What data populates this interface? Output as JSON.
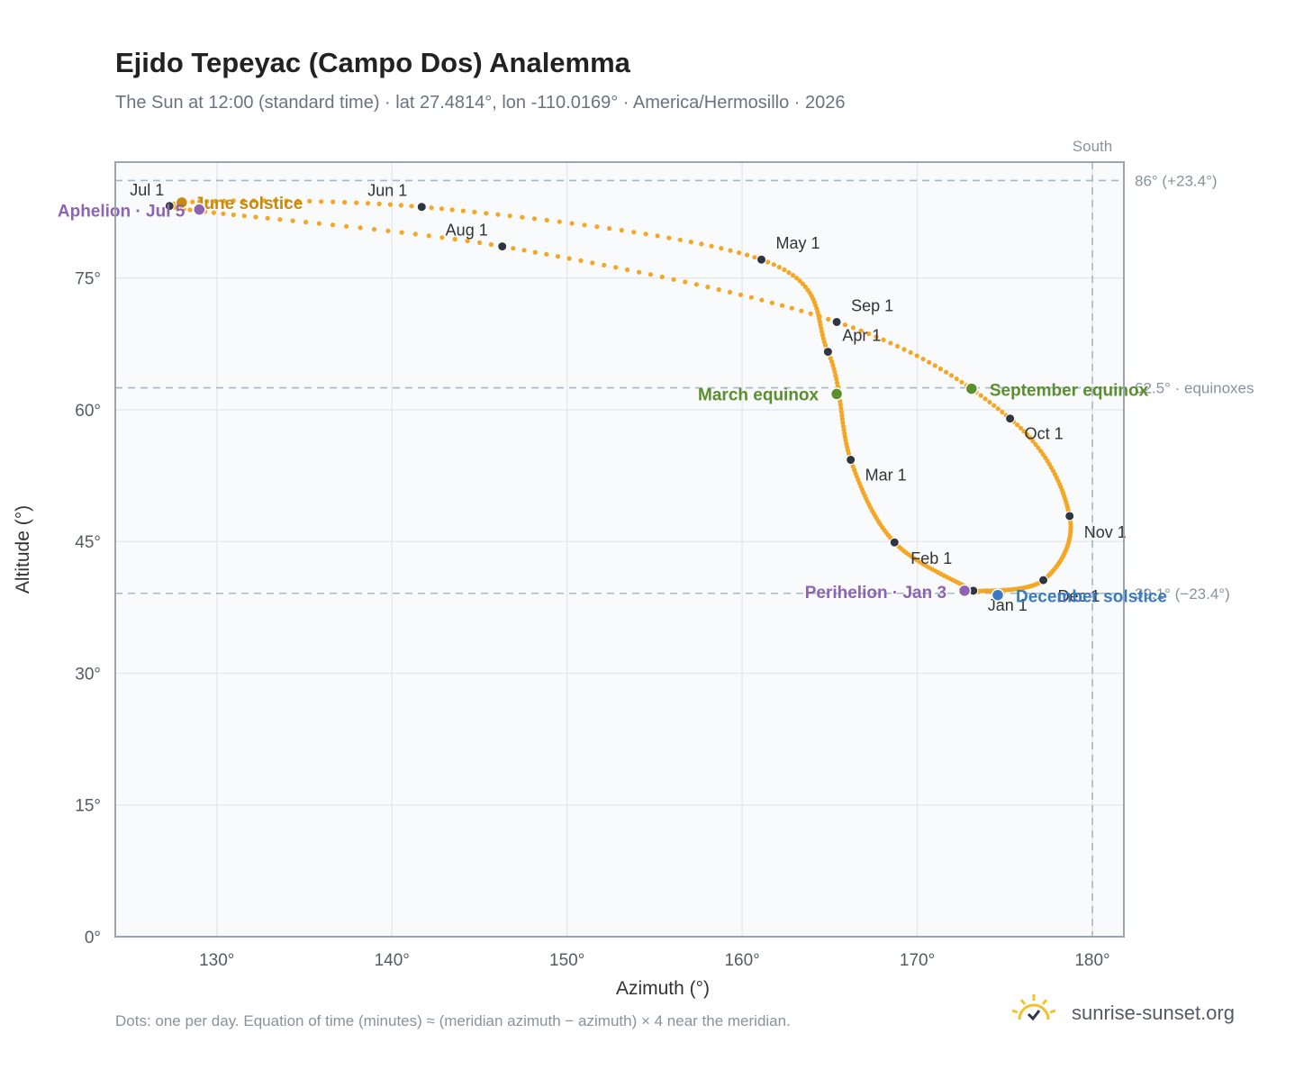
{
  "title": "Ejido Tepeyac (Campo Dos) Analemma",
  "subtitle": "The Sun at 12:00 (standard time) · lat 27.4814°, lon -110.0169° · America/Hermosillo · 2026",
  "footnote": "Dots: one per day. Equation of time (minutes) ≈ (meridian azimuth − azimuth) × 4 near the meridian.",
  "brand": "sunrise-sunset.org",
  "colors": {
    "curve": "#f5a623",
    "month_marker": "#2f3640",
    "solstice_june": "#c98a0c",
    "solstice_december": "#3a7bbf",
    "equinox": "#5a8f2e",
    "apsis": "#8e63b0",
    "reference_line": "#a9b6c4",
    "plot_bg": "#f8fafc",
    "grid": "#e2e8ee",
    "axis_text": "#555b63"
  },
  "chart_data": {
    "type": "scatter",
    "xlabel": "Azimuth (°)",
    "ylabel": "Altitude (°)",
    "xlim": [
      124.2,
      181.8
    ],
    "ylim": [
      0,
      88.2
    ],
    "x_ticks": [
      {
        "value": 130,
        "label": "130°"
      },
      {
        "value": 140,
        "label": "140°"
      },
      {
        "value": 150,
        "label": "150°"
      },
      {
        "value": 160,
        "label": "160°"
      },
      {
        "value": 170,
        "label": "170°"
      },
      {
        "value": 180,
        "label": "180°"
      }
    ],
    "y_ticks": [
      {
        "value": 0,
        "label": "0°"
      },
      {
        "value": 15,
        "label": "15°"
      },
      {
        "value": 30,
        "label": "30°"
      },
      {
        "value": 45,
        "label": "45°"
      },
      {
        "value": 60,
        "label": "60°"
      },
      {
        "value": 75,
        "label": "75°"
      }
    ],
    "grid": true,
    "reference_lines": [
      {
        "axis": "y",
        "value": 86.1,
        "label": "86° (+23.4°)"
      },
      {
        "axis": "y",
        "value": 62.5,
        "label": "62.5° · equinoxes"
      },
      {
        "axis": "y",
        "value": 39.1,
        "label": "39.1° (−23.4°)"
      },
      {
        "axis": "x",
        "value": 180,
        "label": "South"
      }
    ],
    "series": [
      {
        "role": "daily-positions",
        "points": [
          {
            "month": "Jan",
            "day": 1,
            "az": 173.2,
            "alt": 39.4
          },
          {
            "month": "Feb",
            "day": 1,
            "az": 168.7,
            "alt": 44.9
          },
          {
            "month": "Mar",
            "day": 1,
            "az": 166.2,
            "alt": 54.3
          },
          {
            "month": "Apr",
            "day": 1,
            "az": 164.9,
            "alt": 66.6
          },
          {
            "month": "May",
            "day": 1,
            "az": 161.1,
            "alt": 77.1
          },
          {
            "month": "Jun",
            "day": 1,
            "az": 141.7,
            "alt": 83.1
          },
          {
            "month": "Jul",
            "day": 1,
            "az": 127.3,
            "alt": 83.2
          },
          {
            "month": "Aug",
            "day": 1,
            "az": 146.3,
            "alt": 78.6
          },
          {
            "month": "Sep",
            "day": 1,
            "az": 165.4,
            "alt": 70.0
          },
          {
            "month": "Oct",
            "day": 1,
            "az": 175.3,
            "alt": 59.0
          },
          {
            "month": "Nov",
            "day": 1,
            "az": 178.7,
            "alt": 47.9
          },
          {
            "month": "Dec",
            "day": 1,
            "az": 177.2,
            "alt": 40.6
          },
          {
            "month": "Dec",
            "day": 31,
            "az": 173.3,
            "alt": 39.3
          }
        ]
      }
    ],
    "month_markers": [
      {
        "label": "Jan 1",
        "az": 173.2,
        "alt": 39.4
      },
      {
        "label": "Feb 1",
        "az": 168.7,
        "alt": 44.9
      },
      {
        "label": "Mar 1",
        "az": 166.2,
        "alt": 54.3
      },
      {
        "label": "Apr 1",
        "az": 164.9,
        "alt": 66.6
      },
      {
        "label": "May 1",
        "az": 161.1,
        "alt": 77.1
      },
      {
        "label": "Jun 1",
        "az": 141.7,
        "alt": 83.1
      },
      {
        "label": "Jul 1",
        "az": 127.3,
        "alt": 83.2
      },
      {
        "label": "Aug 1",
        "az": 146.3,
        "alt": 78.6
      },
      {
        "label": "Sep 1",
        "az": 165.4,
        "alt": 70.0
      },
      {
        "label": "Oct 1",
        "az": 175.3,
        "alt": 59.0
      },
      {
        "label": "Nov 1",
        "az": 178.7,
        "alt": 47.9
      },
      {
        "label": "Dec 1",
        "az": 177.2,
        "alt": 40.6
      }
    ],
    "events": [
      {
        "label": "June solstice",
        "az": 128.0,
        "alt": 83.6,
        "color_key": "solstice_june"
      },
      {
        "label": "Aphelion · Jul 5",
        "az": 129.0,
        "alt": 82.8,
        "color_key": "apsis"
      },
      {
        "label": "March equinox",
        "az": 165.4,
        "alt": 61.8,
        "color_key": "equinox"
      },
      {
        "label": "September equinox",
        "az": 173.1,
        "alt": 62.4,
        "color_key": "equinox"
      },
      {
        "label": "Perihelion · Jan 3",
        "az": 172.7,
        "alt": 39.4,
        "color_key": "apsis"
      },
      {
        "label": "December solstice",
        "az": 174.6,
        "alt": 38.9,
        "color_key": "solstice_december"
      }
    ]
  }
}
